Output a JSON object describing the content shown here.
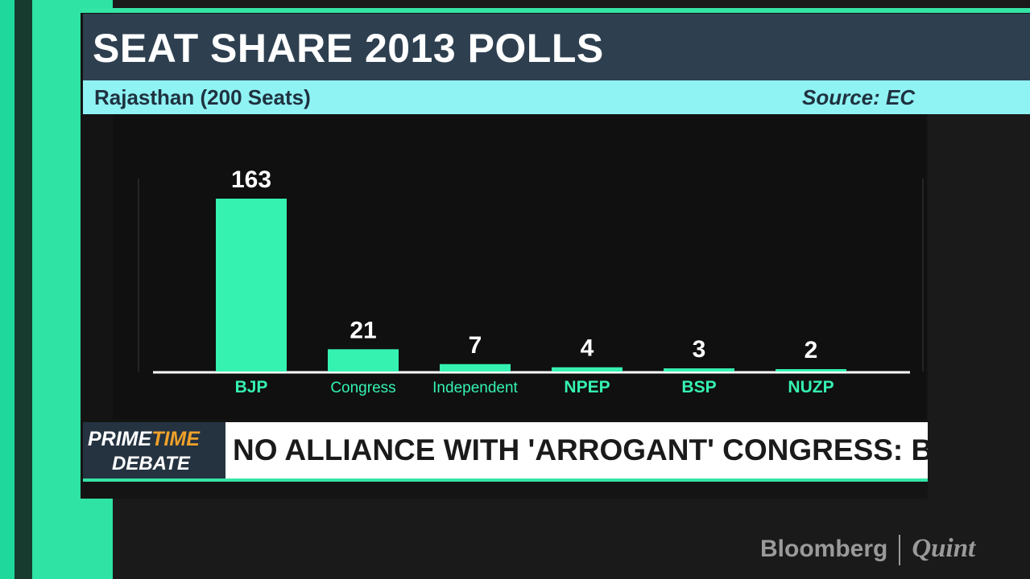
{
  "header": {
    "title": "SEAT SHARE 2013 POLLS",
    "subtitle": "Rajasthan (200 Seats)",
    "source": "Source: EC"
  },
  "chart_data": {
    "type": "bar",
    "categories": [
      "BJP",
      "Congress",
      "Independent",
      "NPEP",
      "BSP",
      "NUZP"
    ],
    "values": [
      163,
      21,
      7,
      4,
      3,
      2
    ],
    "title": "SEAT SHARE 2013 POLLS",
    "xlabel": "",
    "ylabel": "",
    "grid": false,
    "bar_color": "#35f2b0",
    "label_color": "#ffffff",
    "category_color": "#35f2b0"
  },
  "ticker": {
    "show_prime": "PRIME",
    "show_time": "TIME",
    "show_debate": "DEBATE",
    "headline": "NO ALLIANCE WITH 'ARROGANT' CONGRESS: BSP"
  },
  "branding": {
    "logo_left": "Bloomberg",
    "logo_right": "Quint"
  },
  "colors": {
    "accent": "#35e5a6",
    "title_bg": "#2e4050",
    "subtitle_bg": "#90f3f3",
    "time_orange": "#f0a12a"
  }
}
